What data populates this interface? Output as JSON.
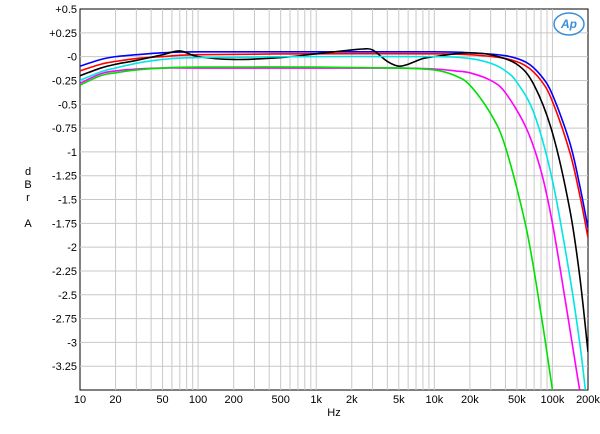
{
  "chart_data": {
    "type": "line",
    "xlabel": "Hz",
    "ylabel": [
      "d",
      "B",
      "r",
      "",
      "A"
    ],
    "xscale": "log",
    "xlim": [
      10,
      200000
    ],
    "ylim": [
      -3.5,
      0.5
    ],
    "grid": true,
    "xticks": [
      {
        "v": 10,
        "label": "10"
      },
      {
        "v": 20,
        "label": "20"
      },
      {
        "v": 50,
        "label": "50"
      },
      {
        "v": 100,
        "label": "100"
      },
      {
        "v": 200,
        "label": "200"
      },
      {
        "v": 500,
        "label": "500"
      },
      {
        "v": 1000,
        "label": "1k"
      },
      {
        "v": 2000,
        "label": "2k"
      },
      {
        "v": 5000,
        "label": "5k"
      },
      {
        "v": 10000,
        "label": "10k"
      },
      {
        "v": 20000,
        "label": "20k"
      },
      {
        "v": 50000,
        "label": "50k"
      },
      {
        "v": 100000,
        "label": "100k"
      },
      {
        "v": 200000,
        "label": "200k"
      }
    ],
    "yticks": [
      {
        "v": 0.5,
        "label": "+0.5"
      },
      {
        "v": 0.25,
        "label": "+0.25"
      },
      {
        "v": 0,
        "label": "-0"
      },
      {
        "v": -0.25,
        "label": "-0.25"
      },
      {
        "v": -0.5,
        "label": "-0.5"
      },
      {
        "v": -0.75,
        "label": "-0.75"
      },
      {
        "v": -1,
        "label": "-1"
      },
      {
        "v": -1.25,
        "label": "-1.25"
      },
      {
        "v": -1.5,
        "label": "-1.5"
      },
      {
        "v": -1.75,
        "label": "-1.75"
      },
      {
        "v": -2,
        "label": "-2"
      },
      {
        "v": -2.25,
        "label": "-2.25"
      },
      {
        "v": -2.5,
        "label": "-2.5"
      },
      {
        "v": -2.75,
        "label": "-2.75"
      },
      {
        "v": -3,
        "label": "-3"
      },
      {
        "v": -3.25,
        "label": "-3.25"
      }
    ],
    "series": [
      {
        "color": "#0000ff",
        "points": [
          [
            10,
            -0.1
          ],
          [
            15,
            -0.03
          ],
          [
            20,
            0.0
          ],
          [
            30,
            0.02
          ],
          [
            50,
            0.04
          ],
          [
            100,
            0.05
          ],
          [
            1000,
            0.05
          ],
          [
            10000,
            0.05
          ],
          [
            20000,
            0.04
          ],
          [
            40000,
            0.01
          ],
          [
            60000,
            -0.06
          ],
          [
            80000,
            -0.2
          ],
          [
            100000,
            -0.4
          ],
          [
            140000,
            -0.9
          ],
          [
            170000,
            -1.35
          ],
          [
            200000,
            -1.8
          ]
        ]
      },
      {
        "color": "#ff0000",
        "points": [
          [
            10,
            -0.15
          ],
          [
            15,
            -0.08
          ],
          [
            20,
            -0.05
          ],
          [
            30,
            -0.02
          ],
          [
            50,
            0.0
          ],
          [
            100,
            0.02
          ],
          [
            1000,
            0.03
          ],
          [
            10000,
            0.03
          ],
          [
            20000,
            0.02
          ],
          [
            40000,
            -0.02
          ],
          [
            60000,
            -0.1
          ],
          [
            80000,
            -0.25
          ],
          [
            100000,
            -0.47
          ],
          [
            140000,
            -1.0
          ],
          [
            170000,
            -1.45
          ],
          [
            200000,
            -1.9
          ]
        ]
      },
      {
        "color": "#000000",
        "points": [
          [
            10,
            -0.2
          ],
          [
            15,
            -0.12
          ],
          [
            20,
            -0.08
          ],
          [
            30,
            -0.04
          ],
          [
            50,
            0.02
          ],
          [
            70,
            0.06
          ],
          [
            100,
            0.0
          ],
          [
            200,
            -0.03
          ],
          [
            500,
            -0.01
          ],
          [
            1000,
            0.03
          ],
          [
            2000,
            0.07
          ],
          [
            2500,
            0.08
          ],
          [
            3000,
            0.07
          ],
          [
            4000,
            -0.05
          ],
          [
            5000,
            -0.1
          ],
          [
            6000,
            -0.08
          ],
          [
            8000,
            -0.02
          ],
          [
            10000,
            0.0
          ],
          [
            15000,
            0.03
          ],
          [
            20000,
            0.04
          ],
          [
            30000,
            0.02
          ],
          [
            50000,
            -0.08
          ],
          [
            70000,
            -0.3
          ],
          [
            100000,
            -0.8
          ],
          [
            140000,
            -1.6
          ],
          [
            170000,
            -2.3
          ],
          [
            200000,
            -3.1
          ]
        ]
      },
      {
        "color": "#00e5e5",
        "points": [
          [
            10,
            -0.25
          ],
          [
            15,
            -0.16
          ],
          [
            20,
            -0.12
          ],
          [
            30,
            -0.07
          ],
          [
            50,
            -0.03
          ],
          [
            100,
            -0.01
          ],
          [
            1000,
            0.0
          ],
          [
            10000,
            0.0
          ],
          [
            20000,
            -0.02
          ],
          [
            30000,
            -0.07
          ],
          [
            40000,
            -0.15
          ],
          [
            50000,
            -0.27
          ],
          [
            70000,
            -0.6
          ],
          [
            100000,
            -1.3
          ],
          [
            140000,
            -2.3
          ],
          [
            170000,
            -3.0
          ],
          [
            190000,
            -3.5
          ]
        ]
      },
      {
        "color": "#ff00ff",
        "points": [
          [
            10,
            -0.28
          ],
          [
            15,
            -0.18
          ],
          [
            20,
            -0.15
          ],
          [
            30,
            -0.13
          ],
          [
            50,
            -0.12
          ],
          [
            100,
            -0.12
          ],
          [
            1000,
            -0.12
          ],
          [
            5000,
            -0.12
          ],
          [
            10000,
            -0.13
          ],
          [
            15000,
            -0.15
          ],
          [
            20000,
            -0.17
          ],
          [
            30000,
            -0.25
          ],
          [
            40000,
            -0.38
          ],
          [
            60000,
            -0.75
          ],
          [
            80000,
            -1.2
          ],
          [
            100000,
            -1.75
          ],
          [
            130000,
            -2.6
          ],
          [
            160000,
            -3.3
          ],
          [
            170000,
            -3.5
          ]
        ]
      },
      {
        "color": "#00e000",
        "points": [
          [
            10,
            -0.3
          ],
          [
            15,
            -0.2
          ],
          [
            20,
            -0.17
          ],
          [
            30,
            -0.14
          ],
          [
            50,
            -0.12
          ],
          [
            100,
            -0.11
          ],
          [
            1000,
            -0.11
          ],
          [
            5000,
            -0.12
          ],
          [
            10000,
            -0.14
          ],
          [
            15000,
            -0.2
          ],
          [
            20000,
            -0.3
          ],
          [
            30000,
            -0.6
          ],
          [
            40000,
            -0.95
          ],
          [
            60000,
            -1.8
          ],
          [
            80000,
            -2.7
          ],
          [
            100000,
            -3.5
          ]
        ]
      }
    ]
  },
  "logo": {
    "text": "Ap"
  }
}
